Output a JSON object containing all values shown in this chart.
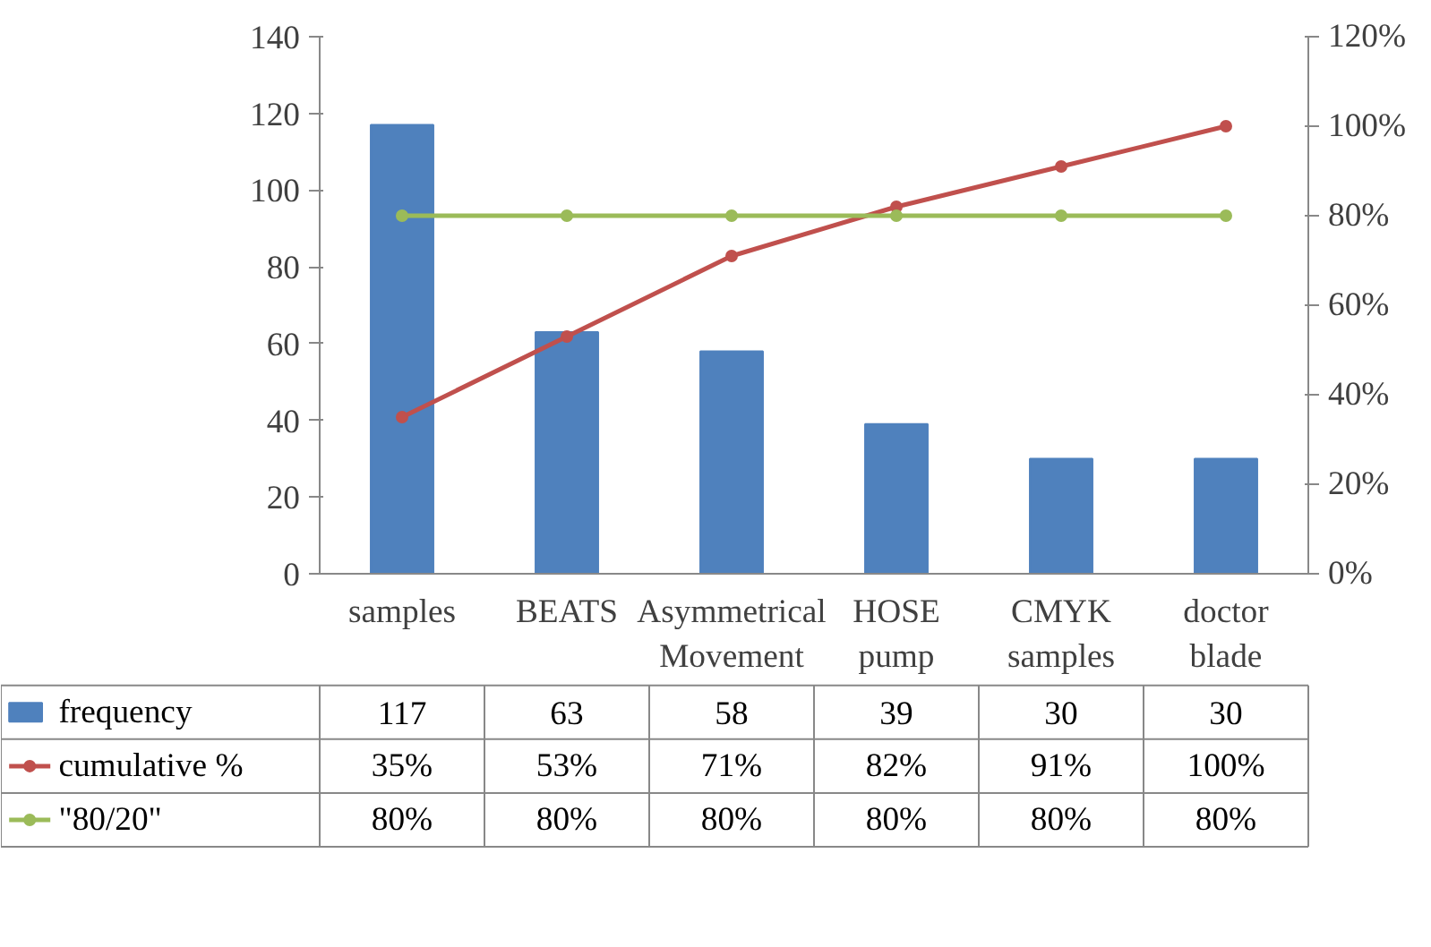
{
  "chart_data": {
    "type": "bar",
    "categories": [
      "samples",
      "BEATS",
      "Asymmetrical Movement",
      "HOSE pump",
      "CMYK samples",
      "doctor blade"
    ],
    "series": [
      {
        "name": "frequency",
        "color": "#4f81bd",
        "values": [
          117,
          63,
          58,
          39,
          30,
          30
        ],
        "value_labels": [
          "117",
          "63",
          "58",
          "39",
          "30",
          "30"
        ]
      },
      {
        "name": "cumulative %",
        "type": "line",
        "axis": "y2",
        "color": "#c0504d",
        "marker": "circle",
        "values": [
          35,
          53,
          71,
          82,
          91,
          100
        ],
        "value_labels": [
          "35%",
          "53%",
          "71%",
          "82%",
          "91%",
          "100%"
        ]
      },
      {
        "name": "\"80/20\"",
        "type": "line",
        "axis": "y2",
        "color": "#9bbb59",
        "marker": "circle",
        "values": [
          80,
          80,
          80,
          80,
          80,
          80
        ],
        "value_labels": [
          "80%",
          "80%",
          "80%",
          "80%",
          "80%",
          "80%"
        ]
      }
    ],
    "ylim": [
      0,
      140
    ],
    "yticks": [
      0,
      20,
      40,
      60,
      80,
      100,
      120,
      140
    ],
    "y2lim": [
      0,
      120
    ],
    "y2ticks": [
      {
        "value": 0,
        "label": "0%"
      },
      {
        "value": 20,
        "label": "20%"
      },
      {
        "value": 40,
        "label": "40%"
      },
      {
        "value": 60,
        "label": "60%"
      },
      {
        "value": 80,
        "label": "80%"
      },
      {
        "value": 100,
        "label": "100%"
      },
      {
        "value": 120,
        "label": "120%"
      }
    ],
    "grid": false,
    "legend": "bottom",
    "data_labels": true
  }
}
